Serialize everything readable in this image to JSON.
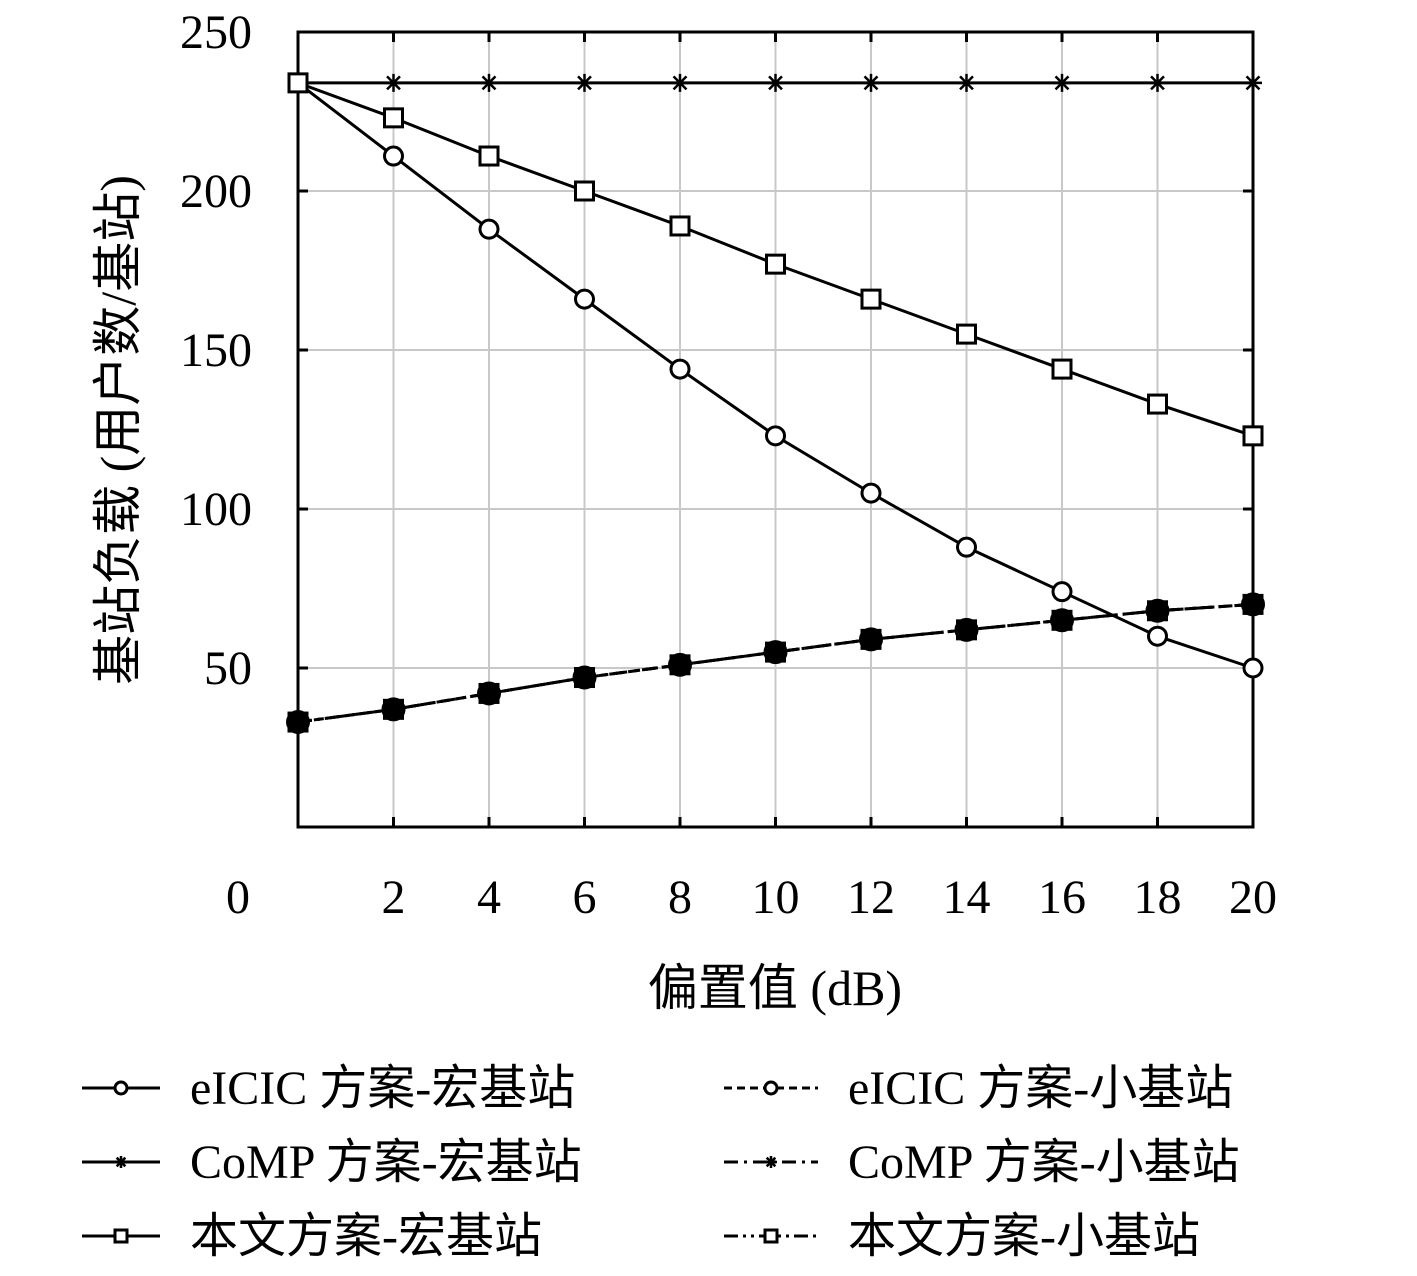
{
  "chart_data": {
    "type": "line",
    "title": "",
    "xlabel": "偏置值 (dB)",
    "ylabel": "基站负载 (用户数/基站)",
    "xlim": [
      0,
      20
    ],
    "ylim": [
      0,
      250
    ],
    "x": [
      0,
      2,
      4,
      6,
      8,
      10,
      12,
      14,
      16,
      18,
      20
    ],
    "x_ticks": [
      "0",
      "2",
      "4",
      "6",
      "8",
      "10",
      "12",
      "14",
      "16",
      "18",
      "20"
    ],
    "y_ticks": [
      "50",
      "100",
      "150",
      "200",
      "250"
    ],
    "y_tick_values": [
      50,
      100,
      150,
      200,
      250
    ],
    "x_grid": true,
    "y_grid": true,
    "legend_position": "bottom",
    "series": [
      {
        "name": "eICIC 方案-宏基站",
        "marker": "circle",
        "dash": "solid",
        "values": [
          234,
          211,
          188,
          166,
          144,
          123,
          105,
          88,
          74,
          60,
          50
        ]
      },
      {
        "name": "eICIC 方案-小基站",
        "marker": "circle",
        "dash": "dashed",
        "values": [
          33,
          37,
          42,
          47,
          51,
          55,
          59,
          62,
          65,
          68,
          70
        ]
      },
      {
        "name": "CoMP 方案-宏基站",
        "marker": "star",
        "dash": "solid",
        "values": [
          234,
          234,
          234,
          234,
          234,
          234,
          234,
          234,
          234,
          234,
          234
        ]
      },
      {
        "name": "CoMP 方案-小基站",
        "marker": "star",
        "dash": "dashdot",
        "values": [
          33,
          37,
          42,
          47,
          51,
          55,
          59,
          62,
          65,
          68,
          70
        ]
      },
      {
        "name": "本文方案-宏基站",
        "marker": "square",
        "dash": "solid",
        "values": [
          234,
          223,
          211,
          200,
          189,
          177,
          166,
          155,
          144,
          133,
          123
        ]
      },
      {
        "name": "本文方案-小基站",
        "marker": "square",
        "dash": "dashdotdot",
        "values": [
          33,
          37,
          42,
          47,
          51,
          55,
          59,
          62,
          65,
          68,
          70
        ]
      }
    ],
    "overlay_filled_markers": {
      "marker": "filled-circle",
      "values": [
        33,
        37,
        42,
        47,
        51,
        55,
        59,
        62,
        65,
        68,
        70
      ]
    }
  }
}
